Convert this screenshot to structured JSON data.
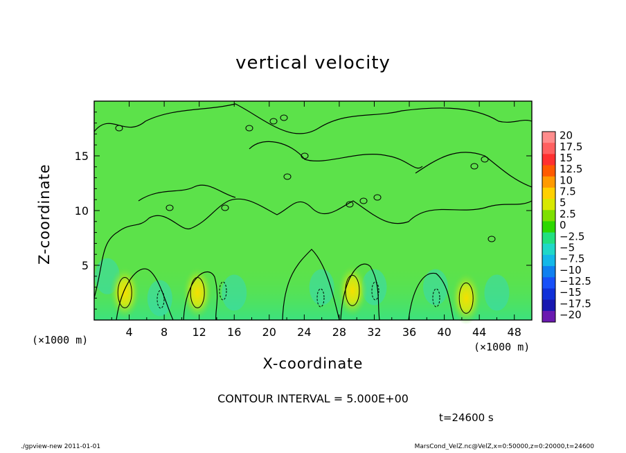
{
  "chart_data": {
    "type": "heatmap",
    "title": "vertical velocity",
    "xlabel": "X-coordinate",
    "ylabel": "Z-coordinate",
    "x_unit_left": "(×1000 m)",
    "x_unit_right": "(×1000 m)",
    "xlim": [
      0,
      50
    ],
    "ylim": [
      0,
      20
    ],
    "x_ticks": [
      4,
      8,
      12,
      16,
      20,
      24,
      28,
      32,
      36,
      40,
      44,
      48
    ],
    "y_ticks": [
      5,
      10,
      15
    ],
    "colorbar": {
      "levels": [
        "20",
        "17.5",
        "15",
        "12.5",
        "10",
        "7.5",
        "5",
        "2.5",
        "0",
        "−2.5",
        "−5",
        "−7.5",
        "−10",
        "−12.5",
        "−15",
        "−17.5",
        "−20"
      ],
      "colors": [
        "#ff8c8c",
        "#ff6060",
        "#ff3030",
        "#ff5a00",
        "#ff9a00",
        "#ffd000",
        "#d8e800",
        "#7ee000",
        "#2ed800",
        "#22e080",
        "#20d8c8",
        "#14b8e8",
        "#1080f0",
        "#1850f8",
        "#1030d8",
        "#1818b0",
        "#6a1ab0"
      ]
    },
    "background_color": "#5ce24a",
    "updraft_cores": [
      {
        "x": 3.5,
        "z": 2.5
      },
      {
        "x": 11.8,
        "z": 2.5
      },
      {
        "x": 29.5,
        "z": 2.7
      },
      {
        "x": 42.5,
        "z": 2.0
      }
    ],
    "contour_interval": "5.000E+00"
  },
  "contour_text": "CONTOUR INTERVAL = 5.000E+00",
  "time_text": "t=24600 s",
  "footer_left": "./gpview-new  2011-01-01",
  "footer_right": "MarsCond_VelZ.nc@VelZ,x=0:50000,z=0:20000,t=24600"
}
